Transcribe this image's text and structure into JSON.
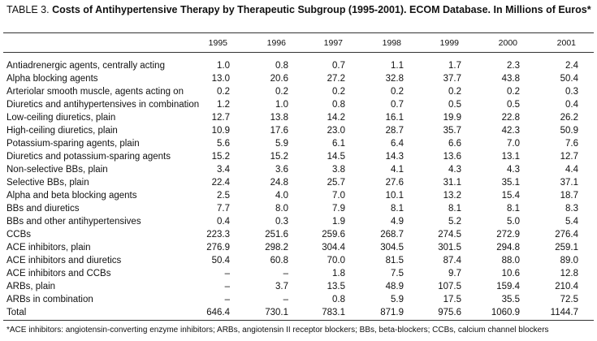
{
  "caption": {
    "label": "TABLE 3.",
    "title": "Costs of Antihypertensive Therapy by Therapeutic Subgroup (1995-2001). ECOM Database. In Millions of Euros*"
  },
  "table": {
    "columns": [
      "1995",
      "1996",
      "1997",
      "1998",
      "1999",
      "2000",
      "2001"
    ],
    "rows": [
      [
        "Antiadrenergic agents, centrally acting",
        "1.0",
        "0.8",
        "0.7",
        "1.1",
        "1.7",
        "2.3",
        "2.4"
      ],
      [
        "Alpha blocking agents",
        "13.0",
        "20.6",
        "27.2",
        "32.8",
        "37.7",
        "43.8",
        "50.4"
      ],
      [
        "Arteriolar smooth muscle, agents acting on",
        "0.2",
        "0.2",
        "0.2",
        "0.2",
        "0.2",
        "0.2",
        "0.3"
      ],
      [
        "Diuretics and antihypertensives in combination",
        "1.2",
        "1.0",
        "0.8",
        "0.7",
        "0.5",
        "0.5",
        "0.4"
      ],
      [
        "Low-ceiling diuretics, plain",
        "12.7",
        "13.8",
        "14.2",
        "16.1",
        "19.9",
        "22.8",
        "26.2"
      ],
      [
        "High-ceiling diuretics, plain",
        "10.9",
        "17.6",
        "23.0",
        "28.7",
        "35.7",
        "42.3",
        "50.9"
      ],
      [
        "Potassium-sparing agents, plain",
        "5.6",
        "5.9",
        "6.1",
        "6.4",
        "6.6",
        "7.0",
        "7.6"
      ],
      [
        "Diuretics and potassium-sparing agents",
        "15.2",
        "15.2",
        "14.5",
        "14.3",
        "13.6",
        "13.1",
        "12.7"
      ],
      [
        "Non-selective BBs, plain",
        "3.4",
        "3.6",
        "3.8",
        "4.1",
        "4.3",
        "4.3",
        "4.4"
      ],
      [
        "Selective BBs, plain",
        "22.4",
        "24.8",
        "25.7",
        "27.6",
        "31.1",
        "35.1",
        "37.1"
      ],
      [
        "Alpha and beta blocking agents",
        "2.5",
        "4.0",
        "7.0",
        "10.1",
        "13.2",
        "15.4",
        "18.7"
      ],
      [
        "BBs and diuretics",
        "7.7",
        "8.0",
        "7.9",
        "8.1",
        "8.1",
        "8.1",
        "8.3"
      ],
      [
        "BBs and other antihypertensives",
        "0.4",
        "0.3",
        "1.9",
        "4.9",
        "5.2",
        "5.0",
        "5.4"
      ],
      [
        "CCBs",
        "223.3",
        "251.6",
        "259.6",
        "268.7",
        "274.5",
        "272.9",
        "276.4"
      ],
      [
        "ACE inhibitors, plain",
        "276.9",
        "298.2",
        "304.4",
        "304.5",
        "301.5",
        "294.8",
        "259.1"
      ],
      [
        "ACE inhibitors and diuretics",
        "50.4",
        "60.8",
        "70.0",
        "81.5",
        "87.4",
        "88.0",
        "89.0"
      ],
      [
        "ACE inhibitors and CCBs",
        "–",
        "–",
        "1.8",
        "7.5",
        "9.7",
        "10.6",
        "12.8"
      ],
      [
        "ARBs, plain",
        "–",
        "3.7",
        "13.5",
        "48.9",
        "107.5",
        "159.4",
        "210.4"
      ],
      [
        "ARBs in combination",
        "–",
        "–",
        "0.8",
        "5.9",
        "17.5",
        "35.5",
        "72.5"
      ],
      [
        "Total",
        "646.4",
        "730.1",
        "783.1",
        "871.9",
        "975.6",
        "1060.9",
        "1144.7"
      ]
    ]
  },
  "footnote": "*ACE inhibitors: angiotensin-converting enzyme inhibitors; ARBs, angiotensin II receptor blockers; BBs, beta-blockers; CCBs, calcium channel blockers"
}
